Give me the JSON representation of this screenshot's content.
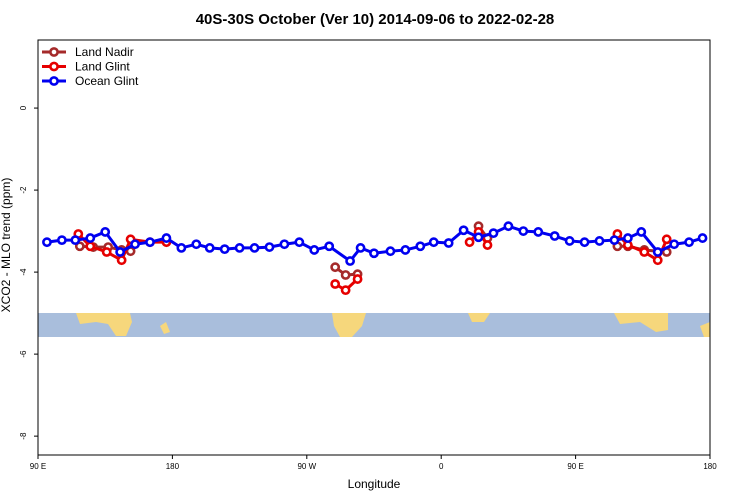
{
  "chart_data": {
    "type": "line",
    "title": "40S-30S October (Ver 10)   2014-09-06 to 2022-02-28",
    "x_label": "Longitude",
    "y_label": "XCO2 - MLO trend (ppm)",
    "xlim": [
      90,
      540
    ],
    "ylim": [
      -8.46,
      1.66
    ],
    "xticks": [
      {
        "value": 90,
        "label": "90 E"
      },
      {
        "value": 180,
        "label": "180"
      },
      {
        "value": 270,
        "label": "90 W"
      },
      {
        "value": 360,
        "label": "0"
      },
      {
        "value": 450,
        "label": "90 E"
      },
      {
        "value": 540,
        "label": "180"
      }
    ],
    "yticks": [
      0,
      -2,
      -4,
      -6,
      -8
    ],
    "legend": "topleft",
    "series": [
      {
        "name": "Land Nadir",
        "color": "#a52a2a",
        "x": [
          118,
          127,
          137,
          146,
          152,
          null,
          289,
          296,
          304,
          null,
          385,
          391,
          null,
          478,
          485,
          496,
          511
        ],
        "values": [
          -3.37,
          -3.39,
          -3.39,
          -3.46,
          -3.49,
          null,
          -3.88,
          -4.07,
          -4.05,
          null,
          -2.88,
          -3.17,
          null,
          -3.37,
          -3.37,
          -3.46,
          -3.51
        ]
      },
      {
        "name": "Land Glint",
        "color": "#e60000",
        "x": [
          117,
          125,
          136,
          146,
          152,
          165,
          176,
          null,
          289,
          296,
          304,
          null,
          379,
          385,
          391,
          null,
          478,
          485,
          496,
          505,
          511
        ],
        "values": [
          -3.07,
          -3.37,
          -3.51,
          -3.71,
          -3.2,
          -3.27,
          -3.27,
          null,
          -4.29,
          -4.44,
          -4.17,
          null,
          -3.27,
          -3.02,
          -3.34,
          null,
          -3.07,
          -3.34,
          -3.51,
          -3.71,
          -3.2
        ]
      },
      {
        "name": "Ocean Glint",
        "color": "#0000f0",
        "x": [
          96,
          106,
          115,
          125,
          135,
          145,
          155,
          165,
          176,
          186,
          196,
          205,
          215,
          225,
          235,
          245,
          255,
          265,
          275,
          285,
          299,
          306,
          315,
          326,
          336,
          346,
          355,
          365,
          375,
          385,
          395,
          405,
          415,
          425,
          436,
          446,
          456,
          466,
          476,
          485,
          494,
          505,
          516,
          526,
          535
        ],
        "values": [
          -3.27,
          -3.22,
          -3.22,
          -3.17,
          -3.02,
          -3.51,
          -3.32,
          -3.27,
          -3.17,
          -3.41,
          -3.32,
          -3.41,
          -3.44,
          -3.41,
          -3.41,
          -3.39,
          -3.32,
          -3.27,
          -3.46,
          -3.37,
          -3.73,
          -3.41,
          -3.54,
          -3.49,
          -3.46,
          -3.37,
          -3.27,
          -3.29,
          -2.98,
          -3.15,
          -3.05,
          -2.88,
          -3.0,
          -3.02,
          -3.12,
          -3.24,
          -3.27,
          -3.24,
          -3.22,
          -3.17,
          -3.02,
          -3.51,
          -3.32,
          -3.27,
          -3.17
        ]
      }
    ]
  }
}
